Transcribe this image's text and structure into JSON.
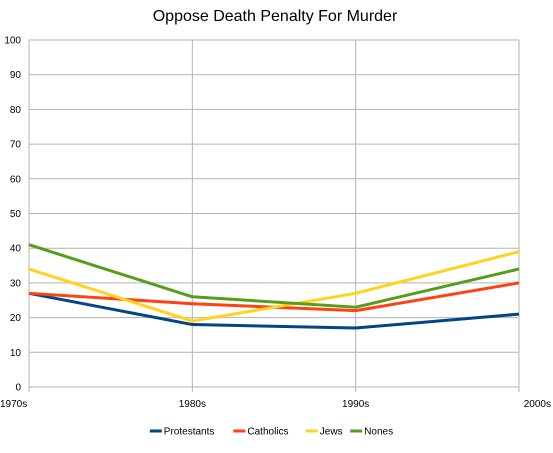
{
  "chart_data": {
    "type": "line",
    "title": "Oppose Death Penalty For Murder",
    "xlabel": "",
    "ylabel": "",
    "categories": [
      "1970s",
      "1980s",
      "1990s",
      "2000s"
    ],
    "ylim": [
      0,
      100
    ],
    "y_ticks": [
      0,
      10,
      20,
      30,
      40,
      50,
      60,
      70,
      80,
      90,
      100
    ],
    "grid": true,
    "legend_position": "bottom",
    "series": [
      {
        "name": "Protestants",
        "color": "#004586",
        "values": [
          27,
          18,
          17,
          21
        ]
      },
      {
        "name": "Catholics",
        "color": "#ff420e",
        "values": [
          27,
          24,
          22,
          30
        ]
      },
      {
        "name": "Jews",
        "color": "#ffd320",
        "values": [
          34,
          19,
          27,
          39
        ]
      },
      {
        "name": "Nones",
        "color": "#579d1c",
        "values": [
          41,
          26,
          23,
          34
        ]
      }
    ]
  }
}
